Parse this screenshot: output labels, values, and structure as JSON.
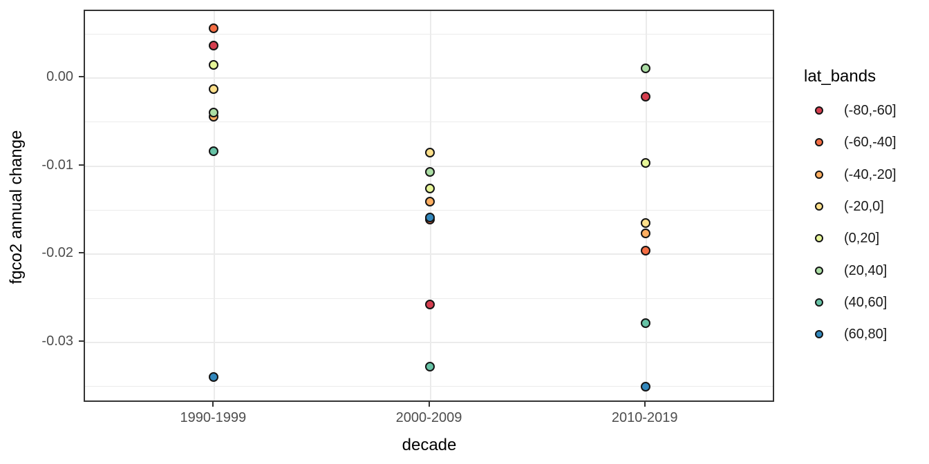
{
  "chart_data": {
    "type": "scatter",
    "title": "",
    "xlabel": "decade",
    "ylabel": "fgco2 annual change",
    "categories": [
      "1990-1999",
      "2000-2009",
      "2010-2019"
    ],
    "y_ticks": [
      0.0,
      -0.01,
      -0.02,
      -0.03
    ],
    "y_tick_labels": [
      "0.00",
      "-0.01",
      "-0.02",
      "-0.03"
    ],
    "ylim": [
      -0.0369,
      0.0076
    ],
    "grid": true,
    "legend_title": "lat_bands",
    "legend_position": "right",
    "point_outline_color": "#141414",
    "gridline_color": "#ebebeb",
    "panel_border_color": "#333333",
    "tick_label_color": "#4d4d4d",
    "series": [
      {
        "name": "(-80,-60]",
        "color": "#d53e4f",
        "values": [
          0.0036,
          -0.0258,
          -0.0022
        ]
      },
      {
        "name": "(-60,-40]",
        "color": "#f46d43",
        "values": [
          0.0056,
          -0.0161,
          -0.0197
        ]
      },
      {
        "name": "(-40,-20]",
        "color": "#fdae61",
        "values": [
          -0.0045,
          -0.0141,
          -0.0177
        ]
      },
      {
        "name": "(-20,0]",
        "color": "#fee08b",
        "values": [
          -0.0013,
          -0.0085,
          -0.0165
        ]
      },
      {
        "name": "(0,20]",
        "color": "#e6f598",
        "values": [
          0.0014,
          -0.0126,
          -0.0097
        ]
      },
      {
        "name": "(20,40]",
        "color": "#abdda4",
        "values": [
          -0.004,
          -0.0107,
          0.001
        ]
      },
      {
        "name": "(40,60]",
        "color": "#66c2a5",
        "values": [
          -0.0084,
          -0.0328,
          -0.0279
        ]
      },
      {
        "name": "(60,80]",
        "color": "#3288bd",
        "values": [
          -0.034,
          -0.0159,
          -0.0351
        ]
      }
    ]
  }
}
